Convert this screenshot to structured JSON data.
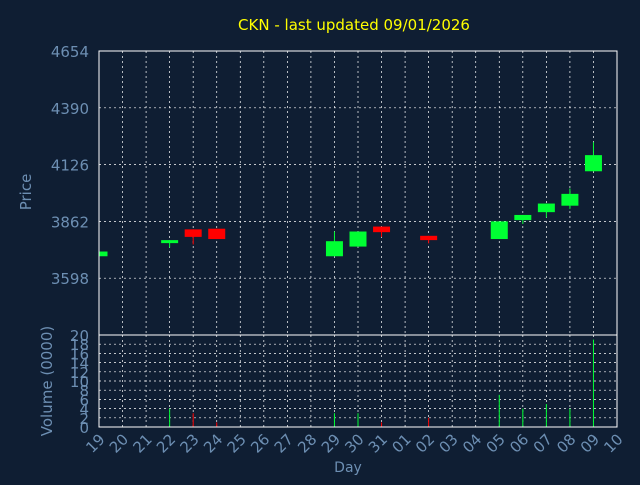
{
  "colors": {
    "background": "#0f1e33",
    "plot_border": "#ffffff",
    "grid": "#ffffff",
    "title": "#ffff00",
    "axis_text": "#6d8fb3",
    "up": "#00ff33",
    "down": "#ff0000"
  },
  "chart_data": [
    {
      "type": "candlestick",
      "title": "CKN - last updated 09/01/2026",
      "ylabel": "Price",
      "ylim": [
        3334,
        4654
      ],
      "yticks": [
        3598,
        3862,
        4126,
        4390,
        4654
      ],
      "x_day_labels": [
        "19",
        "20",
        "21",
        "22",
        "23",
        "24",
        "25",
        "26",
        "27",
        "28",
        "29",
        "30",
        "31",
        "01",
        "02",
        "03",
        "04",
        "05",
        "06",
        "07",
        "08",
        "09",
        "10"
      ],
      "grid": true,
      "candles": [
        {
          "day": "19",
          "open": 3700,
          "close": 3722,
          "high": 3722,
          "low": 3700
        },
        {
          "day": "22",
          "open": 3762,
          "close": 3775,
          "high": 3775,
          "low": 3740
        },
        {
          "day": "23",
          "open": 3825,
          "close": 3790,
          "high": 3825,
          "low": 3755
        },
        {
          "day": "24",
          "open": 3828,
          "close": 3780,
          "high": 3828,
          "low": 3780
        },
        {
          "day": "29",
          "open": 3700,
          "close": 3770,
          "high": 3815,
          "low": 3700
        },
        {
          "day": "30",
          "open": 3745,
          "close": 3815,
          "high": 3815,
          "low": 3745
        },
        {
          "day": "31",
          "open": 3838,
          "close": 3812,
          "high": 3838,
          "low": 3790
        },
        {
          "day": "02",
          "open": 3795,
          "close": 3775,
          "high": 3795,
          "low": 3760
        },
        {
          "day": "05",
          "open": 3780,
          "close": 3862,
          "high": 3862,
          "low": 3780
        },
        {
          "day": "06",
          "open": 3868,
          "close": 3892,
          "high": 3892,
          "low": 3850
        },
        {
          "day": "07",
          "open": 3905,
          "close": 3945,
          "high": 3945,
          "low": 3880
        },
        {
          "day": "08",
          "open": 3935,
          "close": 3990,
          "high": 4015,
          "low": 3920
        },
        {
          "day": "09",
          "open": 4095,
          "close": 4170,
          "high": 4230,
          "low": 4095
        }
      ]
    },
    {
      "type": "bar",
      "ylabel": "Volume (0000)",
      "xlabel": "Day",
      "ylim": [
        0,
        20
      ],
      "yticks": [
        0,
        2,
        4,
        6,
        8,
        10,
        12,
        14,
        16,
        18,
        20
      ],
      "bars": [
        {
          "day": "19",
          "value": 0.2,
          "direction": "up"
        },
        {
          "day": "22",
          "value": 4,
          "direction": "up"
        },
        {
          "day": "23",
          "value": 3,
          "direction": "down"
        },
        {
          "day": "24",
          "value": 1,
          "direction": "down"
        },
        {
          "day": "29",
          "value": 3,
          "direction": "up"
        },
        {
          "day": "30",
          "value": 3,
          "direction": "up"
        },
        {
          "day": "31",
          "value": 1,
          "direction": "down"
        },
        {
          "day": "02",
          "value": 2,
          "direction": "down"
        },
        {
          "day": "05",
          "value": 7,
          "direction": "up"
        },
        {
          "day": "06",
          "value": 4,
          "direction": "up"
        },
        {
          "day": "07",
          "value": 5,
          "direction": "up"
        },
        {
          "day": "08",
          "value": 4,
          "direction": "up"
        },
        {
          "day": "09",
          "value": 19,
          "direction": "up"
        }
      ]
    }
  ]
}
